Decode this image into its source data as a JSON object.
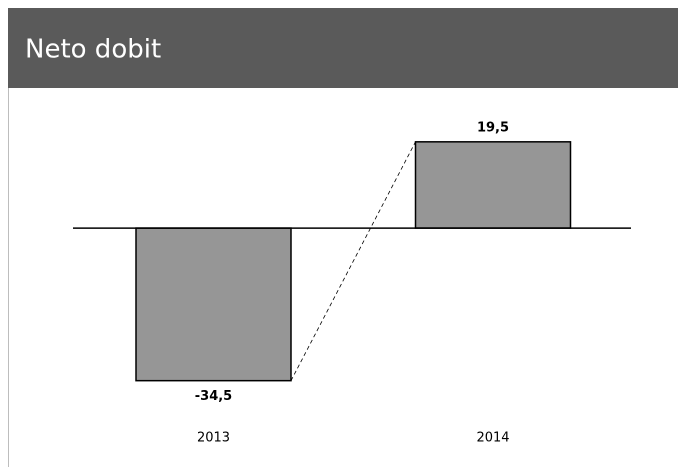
{
  "chart_data": {
    "type": "bar",
    "title": "Neto dobit",
    "categories": [
      "2013",
      "2014"
    ],
    "values": [
      -34.5,
      19.5
    ],
    "value_labels": [
      "-34,5",
      "19,5"
    ],
    "color": "#969696",
    "ylim": [
      -40,
      25
    ],
    "connector": true
  }
}
